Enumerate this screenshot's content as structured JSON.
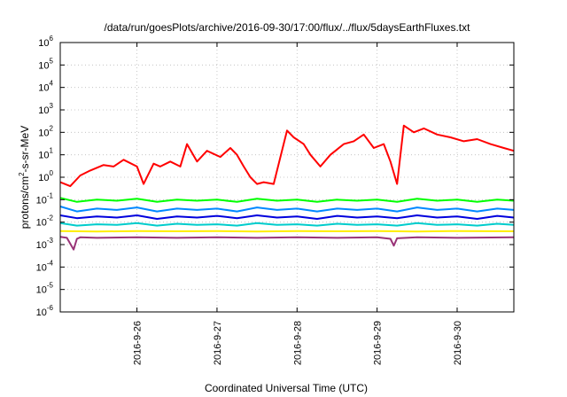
{
  "chart_data": {
    "type": "line",
    "title": "/data/run/goesPlots/archive/2016-09-30/17:00/flux/../flux/5daysEarthFluxes.txt",
    "xlabel": "Coordinated Universal Time (UTC)",
    "ylabel_parts": {
      "base1": "protons/cm",
      "sup": "2",
      "base2": "-s-sr-MeV"
    },
    "yscale": "log",
    "ylim": [
      1e-06,
      1000000.0
    ],
    "yticks": [
      {
        "base": "10",
        "exp": "-6"
      },
      {
        "base": "10",
        "exp": "-5"
      },
      {
        "base": "10",
        "exp": "-4"
      },
      {
        "base": "10",
        "exp": "-3"
      },
      {
        "base": "10",
        "exp": "-2"
      },
      {
        "base": "10",
        "exp": "-1"
      },
      {
        "base": "10",
        "exp": "0"
      },
      {
        "base": "10",
        "exp": "1"
      },
      {
        "base": "10",
        "exp": "2"
      },
      {
        "base": "10",
        "exp": "3"
      },
      {
        "base": "10",
        "exp": "4"
      },
      {
        "base": "10",
        "exp": "5"
      },
      {
        "base": "10",
        "exp": "6"
      }
    ],
    "xlim": [
      "2016-09-25T01:00",
      "2016-09-30T17:00"
    ],
    "xticks": [
      "2016-9-26",
      "2016-9-27",
      "2016-9-28",
      "2016-9-29",
      "2016-9-30"
    ],
    "grid": true,
    "series": [
      {
        "color": "#ff0000",
        "x": [
          "2016-09-25T01:00",
          "2016-09-25T04:00",
          "2016-09-25T07:00",
          "2016-09-25T10:00",
          "2016-09-25T14:00",
          "2016-09-25T17:00",
          "2016-09-25T20:00",
          "2016-09-26T00:00",
          "2016-09-26T02:00",
          "2016-09-26T05:00",
          "2016-09-26T07:00",
          "2016-09-26T10:00",
          "2016-09-26T13:00",
          "2016-09-26T15:00",
          "2016-09-26T18:00",
          "2016-09-26T21:00",
          "2016-09-27T01:00",
          "2016-09-27T04:00",
          "2016-09-27T06:00",
          "2016-09-27T08:00",
          "2016-09-27T10:00",
          "2016-09-27T12:00",
          "2016-09-27T14:00",
          "2016-09-27T17:00",
          "2016-09-27T21:00",
          "2016-09-27T23:00",
          "2016-09-28T02:00",
          "2016-09-28T04:00",
          "2016-09-28T07:00",
          "2016-09-28T10:00",
          "2016-09-28T14:00",
          "2016-09-28T17:00",
          "2016-09-28T20:00",
          "2016-09-28T23:00",
          "2016-09-29T02:00",
          "2016-09-29T04:00",
          "2016-09-29T06:00",
          "2016-09-29T08:00",
          "2016-09-29T11:00",
          "2016-09-29T14:00",
          "2016-09-29T18:00",
          "2016-09-29T22:00",
          "2016-09-30T02:00",
          "2016-09-30T06:00",
          "2016-09-30T10:00",
          "2016-09-30T14:00",
          "2016-09-30T17:00"
        ],
        "y": [
          0.6,
          0.4,
          1.2,
          2.0,
          3.5,
          3.0,
          6.0,
          3.0,
          0.5,
          4.0,
          3.0,
          5.0,
          3.0,
          30.0,
          5.0,
          15.0,
          8.0,
          20.0,
          10.0,
          3.0,
          1.0,
          0.5,
          0.6,
          0.5,
          120.0,
          60.0,
          30.0,
          10.0,
          3.0,
          10.0,
          30.0,
          40.0,
          80.0,
          20.0,
          30.0,
          5.0,
          0.5,
          200.0,
          100.0,
          150.0,
          80.0,
          60.0,
          40.0,
          50.0,
          30.0,
          20.0,
          15.0
        ]
      },
      {
        "color": "#00ff00",
        "x": [
          "2016-09-25T01:00",
          "2016-09-25T06:00",
          "2016-09-25T12:00",
          "2016-09-25T18:00",
          "2016-09-26T00:00",
          "2016-09-26T06:00",
          "2016-09-26T12:00",
          "2016-09-26T18:00",
          "2016-09-27T00:00",
          "2016-09-27T06:00",
          "2016-09-27T12:00",
          "2016-09-27T18:00",
          "2016-09-28T00:00",
          "2016-09-28T06:00",
          "2016-09-28T12:00",
          "2016-09-28T18:00",
          "2016-09-29T00:00",
          "2016-09-29T06:00",
          "2016-09-29T12:00",
          "2016-09-29T18:00",
          "2016-09-30T00:00",
          "2016-09-30T06:00",
          "2016-09-30T12:00",
          "2016-09-30T17:00"
        ],
        "y": [
          0.12,
          0.08,
          0.1,
          0.09,
          0.11,
          0.08,
          0.1,
          0.09,
          0.1,
          0.08,
          0.11,
          0.09,
          0.1,
          0.08,
          0.1,
          0.09,
          0.1,
          0.08,
          0.11,
          0.09,
          0.1,
          0.08,
          0.1,
          0.09
        ]
      },
      {
        "color": "#0088ff",
        "x": [
          "2016-09-25T01:00",
          "2016-09-25T06:00",
          "2016-09-25T12:00",
          "2016-09-25T18:00",
          "2016-09-26T00:00",
          "2016-09-26T06:00",
          "2016-09-26T12:00",
          "2016-09-26T18:00",
          "2016-09-27T00:00",
          "2016-09-27T06:00",
          "2016-09-27T12:00",
          "2016-09-27T18:00",
          "2016-09-28T00:00",
          "2016-09-28T06:00",
          "2016-09-28T12:00",
          "2016-09-28T18:00",
          "2016-09-29T00:00",
          "2016-09-29T06:00",
          "2016-09-29T12:00",
          "2016-09-29T18:00",
          "2016-09-30T00:00",
          "2016-09-30T06:00",
          "2016-09-30T12:00",
          "2016-09-30T17:00"
        ],
        "y": [
          0.05,
          0.03,
          0.04,
          0.035,
          0.045,
          0.03,
          0.04,
          0.035,
          0.04,
          0.03,
          0.045,
          0.035,
          0.04,
          0.03,
          0.04,
          0.035,
          0.04,
          0.03,
          0.045,
          0.035,
          0.04,
          0.03,
          0.04,
          0.035
        ]
      },
      {
        "color": "#0000dd",
        "x": [
          "2016-09-25T01:00",
          "2016-09-25T06:00",
          "2016-09-25T12:00",
          "2016-09-25T18:00",
          "2016-09-26T00:00",
          "2016-09-26T06:00",
          "2016-09-26T12:00",
          "2016-09-26T18:00",
          "2016-09-27T00:00",
          "2016-09-27T06:00",
          "2016-09-27T12:00",
          "2016-09-27T18:00",
          "2016-09-28T00:00",
          "2016-09-28T06:00",
          "2016-09-28T12:00",
          "2016-09-28T18:00",
          "2016-09-29T00:00",
          "2016-09-29T06:00",
          "2016-09-29T12:00",
          "2016-09-29T18:00",
          "2016-09-30T00:00",
          "2016-09-30T06:00",
          "2016-09-30T12:00",
          "2016-09-30T17:00"
        ],
        "y": [
          0.02,
          0.015,
          0.018,
          0.016,
          0.02,
          0.014,
          0.018,
          0.016,
          0.019,
          0.015,
          0.02,
          0.016,
          0.018,
          0.014,
          0.019,
          0.016,
          0.018,
          0.015,
          0.02,
          0.016,
          0.018,
          0.014,
          0.019,
          0.016
        ]
      },
      {
        "color": "#00cccc",
        "x": [
          "2016-09-25T01:00",
          "2016-09-25T06:00",
          "2016-09-25T12:00",
          "2016-09-25T18:00",
          "2016-09-26T00:00",
          "2016-09-26T06:00",
          "2016-09-26T12:00",
          "2016-09-26T18:00",
          "2016-09-27T00:00",
          "2016-09-27T06:00",
          "2016-09-27T12:00",
          "2016-09-27T18:00",
          "2016-09-28T00:00",
          "2016-09-28T06:00",
          "2016-09-28T12:00",
          "2016-09-28T18:00",
          "2016-09-29T00:00",
          "2016-09-29T06:00",
          "2016-09-29T12:00",
          "2016-09-29T18:00",
          "2016-09-30T00:00",
          "2016-09-30T06:00",
          "2016-09-30T12:00",
          "2016-09-30T17:00"
        ],
        "y": [
          0.009,
          0.007,
          0.008,
          0.0075,
          0.009,
          0.007,
          0.0085,
          0.0075,
          0.008,
          0.007,
          0.009,
          0.0075,
          0.008,
          0.007,
          0.0085,
          0.0075,
          0.008,
          0.007,
          0.009,
          0.0075,
          0.008,
          0.007,
          0.0085,
          0.0075
        ]
      },
      {
        "color": "#ffee00",
        "x": [
          "2016-09-25T01:00",
          "2016-09-25T12:00",
          "2016-09-26T00:00",
          "2016-09-26T12:00",
          "2016-09-27T00:00",
          "2016-09-27T12:00",
          "2016-09-28T00:00",
          "2016-09-28T12:00",
          "2016-09-29T00:00",
          "2016-09-29T12:00",
          "2016-09-30T00:00",
          "2016-09-30T17:00"
        ],
        "y": [
          0.004,
          0.0038,
          0.004,
          0.0039,
          0.004,
          0.0038,
          0.004,
          0.0039,
          0.004,
          0.0038,
          0.004,
          0.0039
        ]
      },
      {
        "color": "#993377",
        "x": [
          "2016-09-25T01:00",
          "2016-09-25T03:00",
          "2016-09-25T05:00",
          "2016-09-25T06:00",
          "2016-09-25T07:00",
          "2016-09-25T12:00",
          "2016-09-26T00:00",
          "2016-09-26T12:00",
          "2016-09-27T00:00",
          "2016-09-27T12:00",
          "2016-09-28T00:00",
          "2016-09-28T12:00",
          "2016-09-29T00:00",
          "2016-09-29T04:00",
          "2016-09-29T05:00",
          "2016-09-29T06:00",
          "2016-09-29T12:00",
          "2016-09-30T00:00",
          "2016-09-30T17:00"
        ],
        "y": [
          0.0022,
          0.002,
          0.0006,
          0.0018,
          0.0021,
          0.002,
          0.0021,
          0.002,
          0.0021,
          0.002,
          0.0021,
          0.002,
          0.0021,
          0.0018,
          0.0009,
          0.0019,
          0.0021,
          0.002,
          0.0021
        ]
      }
    ]
  }
}
